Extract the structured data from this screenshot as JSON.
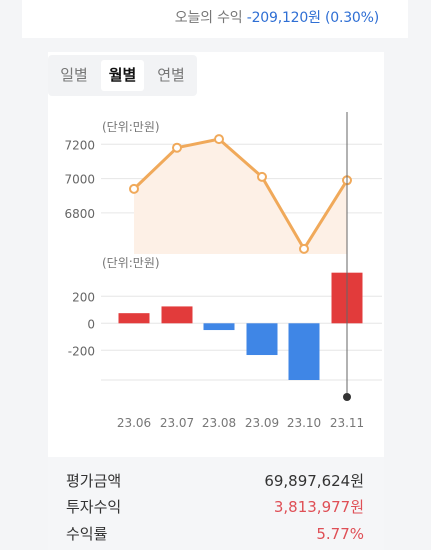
{
  "header": {
    "today_label": "오늘의 수익",
    "today_value": "-209,120원 (0.30%)"
  },
  "tabs": [
    {
      "label": "일별",
      "active": false
    },
    {
      "label": "월별",
      "active": true
    },
    {
      "label": "연별",
      "active": false
    }
  ],
  "chart_data": [
    {
      "type": "line",
      "unit_label": "(단위:만원)",
      "categories": [
        "23.06",
        "23.07",
        "23.08",
        "23.09",
        "23.10",
        "23.11"
      ],
      "values": [
        6940,
        7180,
        7230,
        7010,
        6590,
        6990
      ],
      "yticks": [
        6800,
        7000,
        7200
      ],
      "ylim": [
        6560,
        7400
      ],
      "grid": true,
      "line_color": "#f0a95a",
      "fill_color": "#fdf0e6"
    },
    {
      "type": "bar",
      "unit_label": "(단위:만원)",
      "categories": [
        "23.06",
        "23.07",
        "23.08",
        "23.09",
        "23.10",
        "23.11"
      ],
      "values": [
        75,
        125,
        -50,
        -235,
        -420,
        375
      ],
      "yticks": [
        -200,
        0,
        200
      ],
      "ylim": [
        -420,
        380
      ],
      "grid": true,
      "positive_color": "#e23b3b",
      "negative_color": "#3f86e6"
    }
  ],
  "cursor": {
    "category": "23.11"
  },
  "summary": {
    "rows": [
      {
        "label": "평가금액",
        "value": "69,897,624원",
        "highlight": false
      },
      {
        "label": "투자수익",
        "value": "3,813,977원",
        "highlight": true
      },
      {
        "label": "수익률",
        "value": "5.77%",
        "highlight": true
      }
    ]
  }
}
